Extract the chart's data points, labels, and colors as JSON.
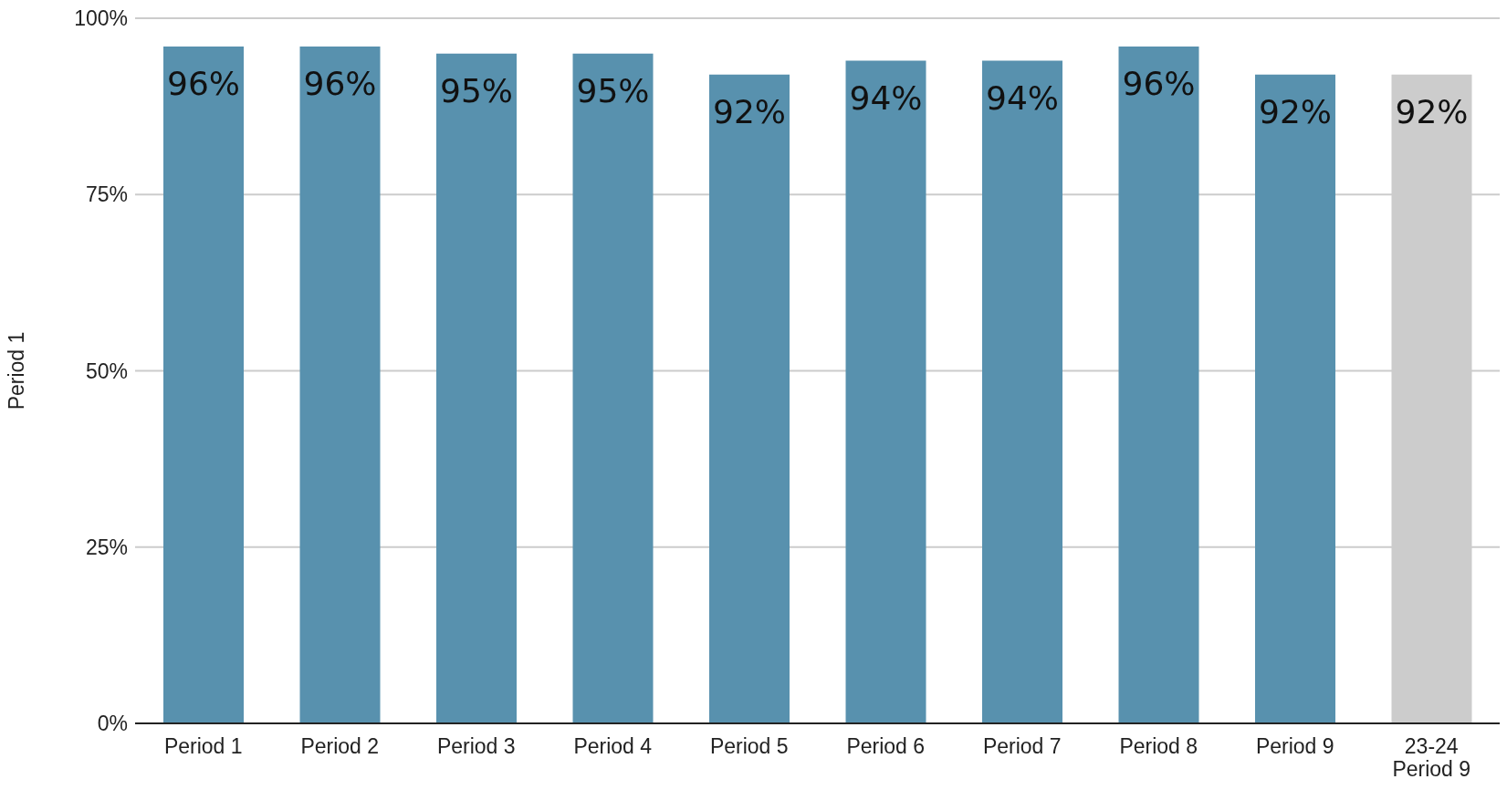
{
  "chart_data": {
    "type": "bar",
    "ylabel": "Period 1",
    "categories": [
      "Period 1",
      "Period 2",
      "Period 3",
      "Period 4",
      "Period 5",
      "Period 6",
      "Period 7",
      "Period 8",
      "Period 9",
      "23-24\nPeriod 9"
    ],
    "values": [
      96,
      96,
      95,
      95,
      92,
      94,
      94,
      96,
      92,
      92
    ],
    "value_labels": [
      "96%",
      "96%",
      "95%",
      "95%",
      "92%",
      "94%",
      "94%",
      "96%",
      "92%",
      "92%"
    ],
    "colors": [
      "#5891ae",
      "#5891ae",
      "#5891ae",
      "#5891ae",
      "#5891ae",
      "#5891ae",
      "#5891ae",
      "#5891ae",
      "#5891ae",
      "#cccccc"
    ],
    "ylim": [
      0,
      100
    ],
    "yticks": [
      {
        "value": 0,
        "label": "0%"
      },
      {
        "value": 25,
        "label": "25%"
      },
      {
        "value": 50,
        "label": "50%"
      },
      {
        "value": 75,
        "label": "75%"
      },
      {
        "value": 100,
        "label": "100%"
      }
    ],
    "grid": "y"
  }
}
